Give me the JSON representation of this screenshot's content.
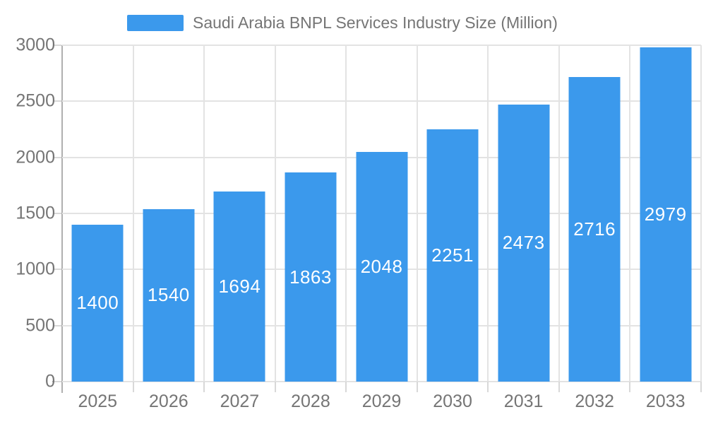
{
  "chart_data": {
    "type": "bar",
    "title": "Saudi Arabia BNPL Services Industry Size (Million)",
    "categories": [
      "2025",
      "2026",
      "2027",
      "2028",
      "2029",
      "2030",
      "2031",
      "2032",
      "2033"
    ],
    "values": [
      1400,
      1540,
      1694,
      1863,
      2048,
      2251,
      2473,
      2716,
      2979
    ],
    "series": [
      {
        "name": "Saudi Arabia BNPL Services Industry Size (Million)",
        "values": [
          1400,
          1540,
          1694,
          1863,
          2048,
          2251,
          2473,
          2716,
          2979
        ]
      }
    ],
    "xlabel": "",
    "ylabel": "",
    "ylim": [
      0,
      3000
    ],
    "yticks": [
      0,
      500,
      1000,
      1500,
      2000,
      2500,
      3000
    ],
    "grid": true,
    "legend_position": "top",
    "value_labels": "inside-center",
    "colors": {
      "bar": "#3B99EC",
      "bar_value_text": "#FFFFFF",
      "axis_text": "#757575",
      "axis_line": "#B0B0B0",
      "gridline": "#E3E3E3",
      "tick": "#D8D8D8",
      "background": "#FFFFFF"
    }
  }
}
